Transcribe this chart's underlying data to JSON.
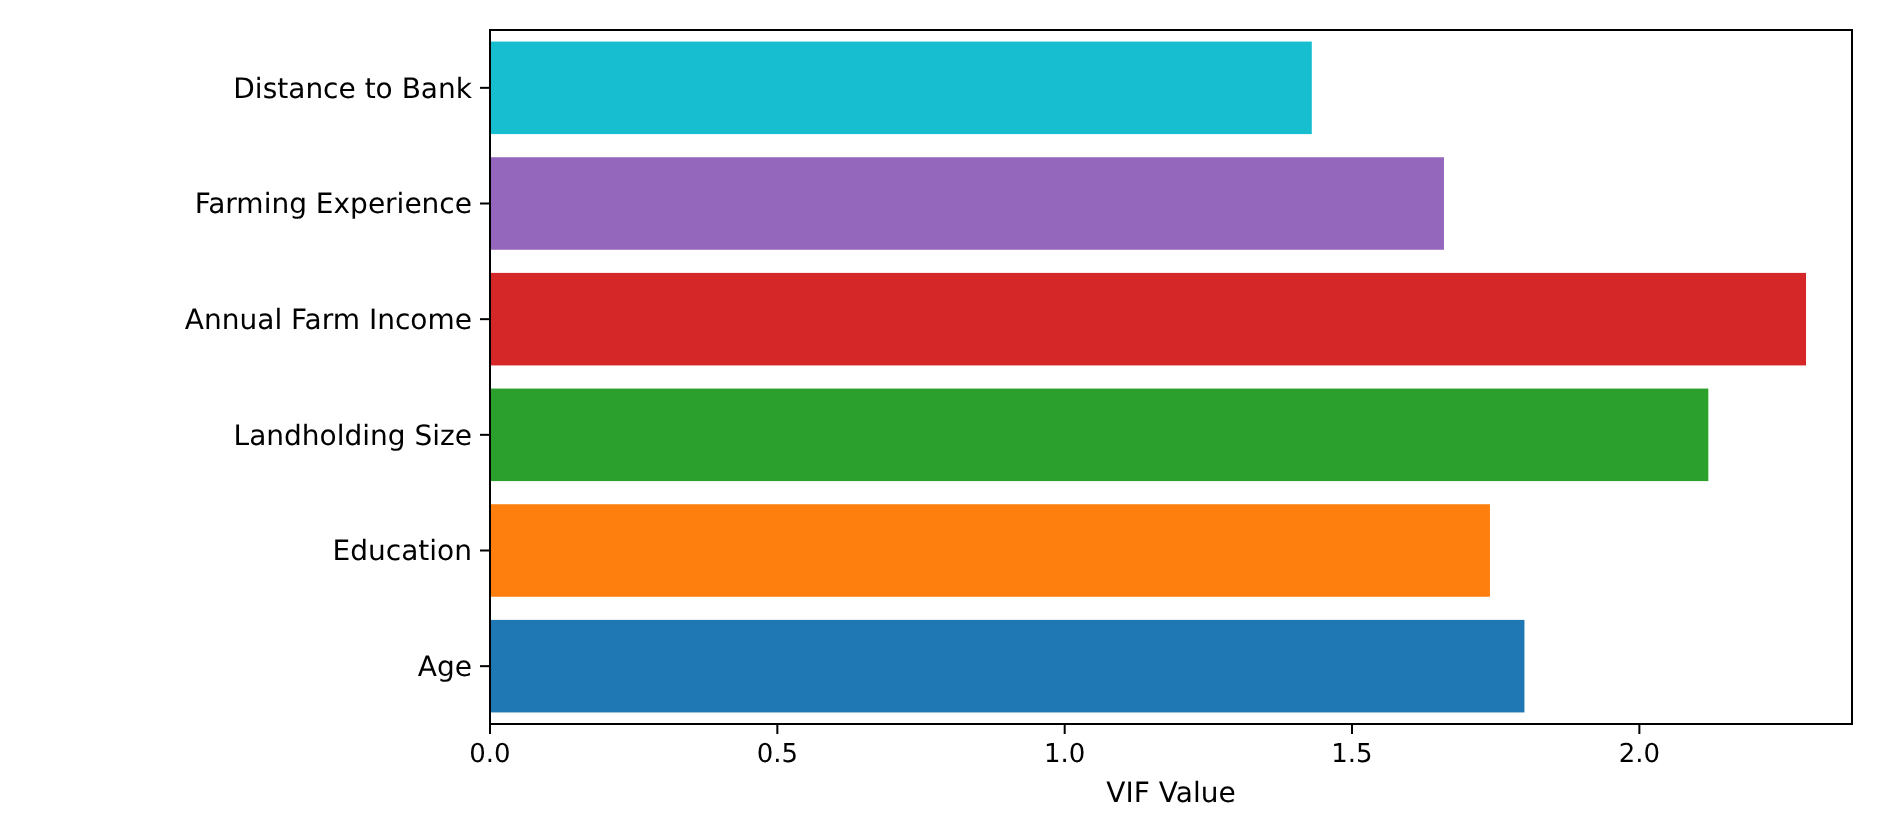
{
  "chart_data": {
    "type": "bar",
    "orientation": "horizontal",
    "xlabel": "VIF Value",
    "categories": [
      "Distance to Bank",
      "Farming Experience",
      "Annual Farm Income",
      "Landholding Size",
      "Education",
      "Age"
    ],
    "values": [
      1.43,
      1.66,
      2.29,
      2.12,
      1.74,
      1.8
    ],
    "colors": [
      "#17becf",
      "#9467bd",
      "#d62728",
      "#2ca02c",
      "#ff7f0e",
      "#1f77b4"
    ],
    "xlim": [
      0,
      2.37
    ],
    "xticks": [
      {
        "value": 0,
        "label": "0.0"
      },
      {
        "value": 0.5,
        "label": "0.5"
      },
      {
        "value": 1,
        "label": "1.0"
      },
      {
        "value": 1.5,
        "label": "1.5"
      },
      {
        "value": 2,
        "label": "2.0"
      }
    ],
    "grid": false
  }
}
